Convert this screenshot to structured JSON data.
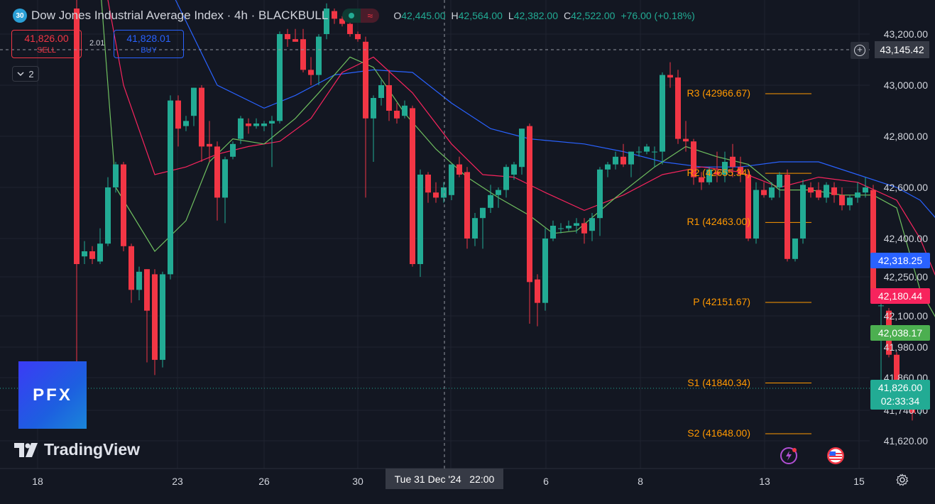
{
  "header": {
    "symbol_badge": "30",
    "title": "Dow Jones Industrial Average Index · 4h · BLACKBULL",
    "ohlc": [
      {
        "key": "O",
        "value": "42,445.00"
      },
      {
        "key": "H",
        "value": "42,564.00"
      },
      {
        "key": "L",
        "value": "42,382.00"
      },
      {
        "key": "C",
        "value": "42,522.00"
      },
      {
        "key": "",
        "value": "+76.00 (+0.18%)"
      }
    ]
  },
  "trade": {
    "sell_price": "41,826.00",
    "sell_label": "SELL",
    "buy_price": "41,828.01",
    "buy_label": "BUY",
    "spread": "2.01",
    "collapse_count": "2"
  },
  "logos": {
    "broker": "PFX",
    "platform": "TradingView"
  },
  "price_axis": {
    "ticks": [
      "43,200.00",
      "43,000.00",
      "42,800.00",
      "42,600.00",
      "42,400.00",
      "42,250.00",
      "42,100.00",
      "41,980.00",
      "41,860.00",
      "41,740.00",
      "41,620.00"
    ],
    "crosshair_price": "43,145.42",
    "ma_blue_price": "42,318.25",
    "ma_red_price": "42,180.44",
    "ma_green_price": "42,038.17",
    "last_price": "41,826.00",
    "countdown": "02:33:34"
  },
  "time_axis": {
    "ticks": [
      "18",
      "23",
      "26",
      "30",
      "6",
      "8",
      "13",
      "15"
    ],
    "crosshair_time": "Tue 31 Dec '24   22:00"
  },
  "pivots": [
    {
      "label": "R3 (42966.67)",
      "value": 42966.67
    },
    {
      "label": "R2 (42655.34)",
      "value": 42655.34
    },
    {
      "label": "R1 (42463.00)",
      "value": 42463.0
    },
    {
      "label": "P (42151.67)",
      "value": 42151.67
    },
    {
      "label": "S1 (41840.34)",
      "value": 41840.34
    },
    {
      "label": "S2 (41648.00)",
      "value": 41648.0
    }
  ],
  "colors": {
    "background": "#131722",
    "up": "#22ab94",
    "down": "#f23645",
    "ma_blue": "#2962ff",
    "ma_red": "#f7245d",
    "ma_green": "#6fbf5f",
    "pivot": "#ff9800"
  },
  "chart_data": {
    "type": "candlestick",
    "title": "Dow Jones Industrial Average Index · 4h · BLACKBULL",
    "xlabel": "",
    "ylabel": "",
    "grid": true,
    "ylim_visible": [
      41580,
      43260
    ],
    "candles": [
      {
        "o": 43300,
        "h": 43350,
        "l": 41880,
        "c": 42300
      },
      {
        "o": 42330,
        "h": 42390,
        "l": 42300,
        "c": 42350
      },
      {
        "o": 42350,
        "h": 42370,
        "l": 42300,
        "c": 42320
      },
      {
        "o": 42310,
        "h": 42440,
        "l": 42300,
        "c": 42380
      },
      {
        "o": 42380,
        "h": 42640,
        "l": 42370,
        "c": 42600
      },
      {
        "o": 42600,
        "h": 42700,
        "l": 42580,
        "c": 42690
      },
      {
        "o": 42690,
        "h": 42700,
        "l": 42350,
        "c": 42370
      },
      {
        "o": 42370,
        "h": 42380,
        "l": 42150,
        "c": 42200
      },
      {
        "o": 42200,
        "h": 42290,
        "l": 42160,
        "c": 42270
      },
      {
        "o": 42280,
        "h": 42280,
        "l": 41920,
        "c": 42120
      },
      {
        "o": 42260,
        "h": 42280,
        "l": 41870,
        "c": 41930
      },
      {
        "o": 41930,
        "h": 42270,
        "l": 41900,
        "c": 42260
      },
      {
        "o": 42260,
        "h": 42960,
        "l": 42240,
        "c": 42940
      },
      {
        "o": 42940,
        "h": 42960,
        "l": 42760,
        "c": 42830
      },
      {
        "o": 42840,
        "h": 42880,
        "l": 42820,
        "c": 42860
      },
      {
        "o": 42880,
        "h": 42990,
        "l": 42840,
        "c": 42990
      },
      {
        "o": 42990,
        "h": 43000,
        "l": 42700,
        "c": 42760
      },
      {
        "o": 42770,
        "h": 42860,
        "l": 42700,
        "c": 42760
      },
      {
        "o": 42760,
        "h": 42780,
        "l": 42470,
        "c": 42560
      },
      {
        "o": 42560,
        "h": 42720,
        "l": 42460,
        "c": 42710
      },
      {
        "o": 42720,
        "h": 42780,
        "l": 42710,
        "c": 42770
      },
      {
        "o": 42790,
        "h": 42880,
        "l": 42770,
        "c": 42870
      },
      {
        "o": 42850,
        "h": 42870,
        "l": 42810,
        "c": 42840
      },
      {
        "o": 42840,
        "h": 42870,
        "l": 42830,
        "c": 42850
      },
      {
        "o": 42840,
        "h": 42860,
        "l": 42820,
        "c": 42850
      },
      {
        "o": 42850,
        "h": 42880,
        "l": 42680,
        "c": 42860
      },
      {
        "o": 42860,
        "h": 43210,
        "l": 42850,
        "c": 43200
      },
      {
        "o": 43200,
        "h": 43220,
        "l": 43150,
        "c": 43180
      },
      {
        "o": 43180,
        "h": 43220,
        "l": 43170,
        "c": 43170
      },
      {
        "o": 43180,
        "h": 43220,
        "l": 43050,
        "c": 43060
      },
      {
        "o": 43060,
        "h": 43110,
        "l": 43000,
        "c": 43040
      },
      {
        "o": 43040,
        "h": 43200,
        "l": 43000,
        "c": 43190
      },
      {
        "o": 43200,
        "h": 43320,
        "l": 43180,
        "c": 43300
      },
      {
        "o": 43290,
        "h": 43300,
        "l": 43240,
        "c": 43260
      },
      {
        "o": 43260,
        "h": 43270,
        "l": 43230,
        "c": 43240
      },
      {
        "o": 43240,
        "h": 43250,
        "l": 43190,
        "c": 43200
      },
      {
        "o": 43200,
        "h": 43210,
        "l": 43170,
        "c": 43180
      },
      {
        "o": 43170,
        "h": 43190,
        "l": 42560,
        "c": 42870
      },
      {
        "o": 42870,
        "h": 42960,
        "l": 42700,
        "c": 42950
      },
      {
        "o": 42950,
        "h": 43020,
        "l": 42920,
        "c": 43000
      },
      {
        "o": 43000,
        "h": 43060,
        "l": 42860,
        "c": 42900
      },
      {
        "o": 42900,
        "h": 42930,
        "l": 42850,
        "c": 42870
      },
      {
        "o": 42880,
        "h": 42940,
        "l": 42870,
        "c": 42920
      },
      {
        "o": 42910,
        "h": 42920,
        "l": 42290,
        "c": 42300
      },
      {
        "o": 42300,
        "h": 42670,
        "l": 42250,
        "c": 42650
      },
      {
        "o": 42650,
        "h": 42660,
        "l": 42540,
        "c": 42580
      },
      {
        "o": 42580,
        "h": 42620,
        "l": 42540,
        "c": 42560
      },
      {
        "o": 42560,
        "h": 42620,
        "l": 42540,
        "c": 42600
      },
      {
        "o": 42570,
        "h": 42690,
        "l": 42550,
        "c": 42690
      },
      {
        "o": 42690,
        "h": 42720,
        "l": 42640,
        "c": 42650
      },
      {
        "o": 42660,
        "h": 42680,
        "l": 42360,
        "c": 42400
      },
      {
        "o": 42400,
        "h": 42500,
        "l": 42370,
        "c": 42480
      },
      {
        "o": 42480,
        "h": 42520,
        "l": 42360,
        "c": 42520
      },
      {
        "o": 42520,
        "h": 42610,
        "l": 42500,
        "c": 42570
      },
      {
        "o": 42570,
        "h": 42600,
        "l": 42520,
        "c": 42590
      },
      {
        "o": 42590,
        "h": 42690,
        "l": 42560,
        "c": 42680
      },
      {
        "o": 42650,
        "h": 42700,
        "l": 42630,
        "c": 42690
      },
      {
        "o": 42680,
        "h": 42830,
        "l": 42650,
        "c": 42830
      },
      {
        "o": 42840,
        "h": 42850,
        "l": 42070,
        "c": 42230
      },
      {
        "o": 42240,
        "h": 42260,
        "l": 42060,
        "c": 42150
      },
      {
        "o": 42150,
        "h": 42440,
        "l": 42120,
        "c": 42400
      },
      {
        "o": 42400,
        "h": 42470,
        "l": 42390,
        "c": 42450
      },
      {
        "o": 42440,
        "h": 42460,
        "l": 42420,
        "c": 42440
      },
      {
        "o": 42440,
        "h": 42470,
        "l": 42430,
        "c": 42450
      },
      {
        "o": 42450,
        "h": 42480,
        "l": 42420,
        "c": 42460
      },
      {
        "o": 42460,
        "h": 42480,
        "l": 42380,
        "c": 42420
      },
      {
        "o": 42430,
        "h": 42500,
        "l": 42390,
        "c": 42480
      },
      {
        "o": 42480,
        "h": 42680,
        "l": 42410,
        "c": 42670
      },
      {
        "o": 42670,
        "h": 42700,
        "l": 42640,
        "c": 42690
      },
      {
        "o": 42690,
        "h": 42740,
        "l": 42670,
        "c": 42720
      },
      {
        "o": 42720,
        "h": 42770,
        "l": 42680,
        "c": 42690
      },
      {
        "o": 42690,
        "h": 42740,
        "l": 42640,
        "c": 42740
      },
      {
        "o": 42740,
        "h": 42760,
        "l": 42720,
        "c": 42740
      },
      {
        "o": 42740,
        "h": 42770,
        "l": 42730,
        "c": 42760
      },
      {
        "o": 42740,
        "h": 42760,
        "l": 42680,
        "c": 42740
      },
      {
        "o": 42740,
        "h": 43050,
        "l": 42690,
        "c": 43040
      },
      {
        "o": 43040,
        "h": 43090,
        "l": 42990,
        "c": 43030
      },
      {
        "o": 43030,
        "h": 43060,
        "l": 42770,
        "c": 42790
      },
      {
        "o": 42790,
        "h": 42860,
        "l": 42740,
        "c": 42780
      },
      {
        "o": 42780,
        "h": 42790,
        "l": 42610,
        "c": 42640
      },
      {
        "o": 42640,
        "h": 42660,
        "l": 42590,
        "c": 42620
      },
      {
        "o": 42620,
        "h": 42680,
        "l": 42610,
        "c": 42670
      },
      {
        "o": 42660,
        "h": 42740,
        "l": 42620,
        "c": 42650
      },
      {
        "o": 42650,
        "h": 42740,
        "l": 42620,
        "c": 42700
      },
      {
        "o": 42720,
        "h": 42770,
        "l": 42640,
        "c": 42680
      },
      {
        "o": 42680,
        "h": 42720,
        "l": 42620,
        "c": 42650
      },
      {
        "o": 42650,
        "h": 42670,
        "l": 42390,
        "c": 42400
      },
      {
        "o": 42400,
        "h": 42620,
        "l": 42380,
        "c": 42590
      },
      {
        "o": 42590,
        "h": 42620,
        "l": 42560,
        "c": 42570
      },
      {
        "o": 42560,
        "h": 42620,
        "l": 42550,
        "c": 42600
      },
      {
        "o": 42600,
        "h": 42660,
        "l": 42560,
        "c": 42650
      },
      {
        "o": 42650,
        "h": 42670,
        "l": 42310,
        "c": 42320
      },
      {
        "o": 42320,
        "h": 42400,
        "l": 42310,
        "c": 42400
      },
      {
        "o": 42400,
        "h": 42630,
        "l": 42380,
        "c": 42610
      },
      {
        "o": 42600,
        "h": 42620,
        "l": 42560,
        "c": 42580
      },
      {
        "o": 42590,
        "h": 42620,
        "l": 42550,
        "c": 42560
      },
      {
        "o": 42560,
        "h": 42620,
        "l": 42540,
        "c": 42610
      },
      {
        "o": 42600,
        "h": 42620,
        "l": 42540,
        "c": 42570
      },
      {
        "o": 42570,
        "h": 42600,
        "l": 42510,
        "c": 42530
      },
      {
        "o": 42530,
        "h": 42570,
        "l": 42510,
        "c": 42560
      },
      {
        "o": 42560,
        "h": 42620,
        "l": 42540,
        "c": 42580
      },
      {
        "o": 42580,
        "h": 42640,
        "l": 42560,
        "c": 42600
      },
      {
        "o": 42590,
        "h": 42610,
        "l": 42160,
        "c": 42170
      },
      {
        "o": 42140,
        "h": 42150,
        "l": 41840,
        "c": 42140
      },
      {
        "o": 42120,
        "h": 42130,
        "l": 41940,
        "c": 41950
      },
      {
        "o": 41950,
        "h": 41960,
        "l": 41800,
        "c": 41820
      },
      {
        "o": 41820,
        "h": 41840,
        "l": 41800,
        "c": 41840
      },
      {
        "o": 41840,
        "h": 41850,
        "l": 41700,
        "c": 41730
      },
      {
        "o": 41750,
        "h": 41840,
        "l": 41720,
        "c": 41826
      }
    ],
    "sma_blue": [
      [
        0,
        44400
      ],
      [
        10,
        43500
      ],
      [
        18,
        43000
      ],
      [
        24,
        42910
      ],
      [
        28,
        42960
      ],
      [
        33,
        43040
      ],
      [
        38,
        43060
      ],
      [
        43,
        43050
      ],
      [
        48,
        42930
      ],
      [
        53,
        42830
      ],
      [
        58,
        42790
      ],
      [
        65,
        42770
      ],
      [
        70,
        42740
      ],
      [
        75,
        42700
      ],
      [
        80,
        42680
      ],
      [
        85,
        42680
      ],
      [
        90,
        42700
      ],
      [
        95,
        42700
      ],
      [
        100,
        42650
      ],
      [
        105,
        42600
      ],
      [
        108,
        42550
      ],
      [
        110,
        42480
      ],
      [
        113,
        42330
      ]
    ],
    "sma_red": [
      [
        0,
        44000
      ],
      [
        6,
        43000
      ],
      [
        10,
        42650
      ],
      [
        14,
        42680
      ],
      [
        18,
        42730
      ],
      [
        22,
        42760
      ],
      [
        26,
        42780
      ],
      [
        30,
        42870
      ],
      [
        34,
        43050
      ],
      [
        38,
        43110
      ],
      [
        43,
        42970
      ],
      [
        48,
        42770
      ],
      [
        52,
        42650
      ],
      [
        56,
        42640
      ],
      [
        60,
        42580
      ],
      [
        65,
        42510
      ],
      [
        70,
        42570
      ],
      [
        75,
        42650
      ],
      [
        80,
        42680
      ],
      [
        85,
        42660
      ],
      [
        90,
        42600
      ],
      [
        95,
        42640
      ],
      [
        100,
        42620
      ],
      [
        105,
        42550
      ],
      [
        108,
        42400
      ],
      [
        111,
        42180
      ]
    ],
    "sma_green": [
      [
        1,
        44200
      ],
      [
        5,
        42600
      ],
      [
        10,
        42350
      ],
      [
        14,
        42470
      ],
      [
        17,
        42700
      ],
      [
        20,
        42790
      ],
      [
        24,
        42770
      ],
      [
        28,
        42870
      ],
      [
        31,
        42970
      ],
      [
        35,
        43110
      ],
      [
        38,
        43070
      ],
      [
        42,
        42890
      ],
      [
        46,
        42750
      ],
      [
        50,
        42640
      ],
      [
        54,
        42560
      ],
      [
        58,
        42490
      ],
      [
        61,
        42420
      ],
      [
        64,
        42430
      ],
      [
        69,
        42560
      ],
      [
        74,
        42680
      ],
      [
        78,
        42760
      ],
      [
        82,
        42720
      ],
      [
        86,
        42690
      ],
      [
        90,
        42590
      ],
      [
        94,
        42590
      ],
      [
        98,
        42570
      ],
      [
        102,
        42570
      ],
      [
        105,
        42520
      ],
      [
        108,
        42200
      ],
      [
        111,
        42040
      ]
    ]
  }
}
